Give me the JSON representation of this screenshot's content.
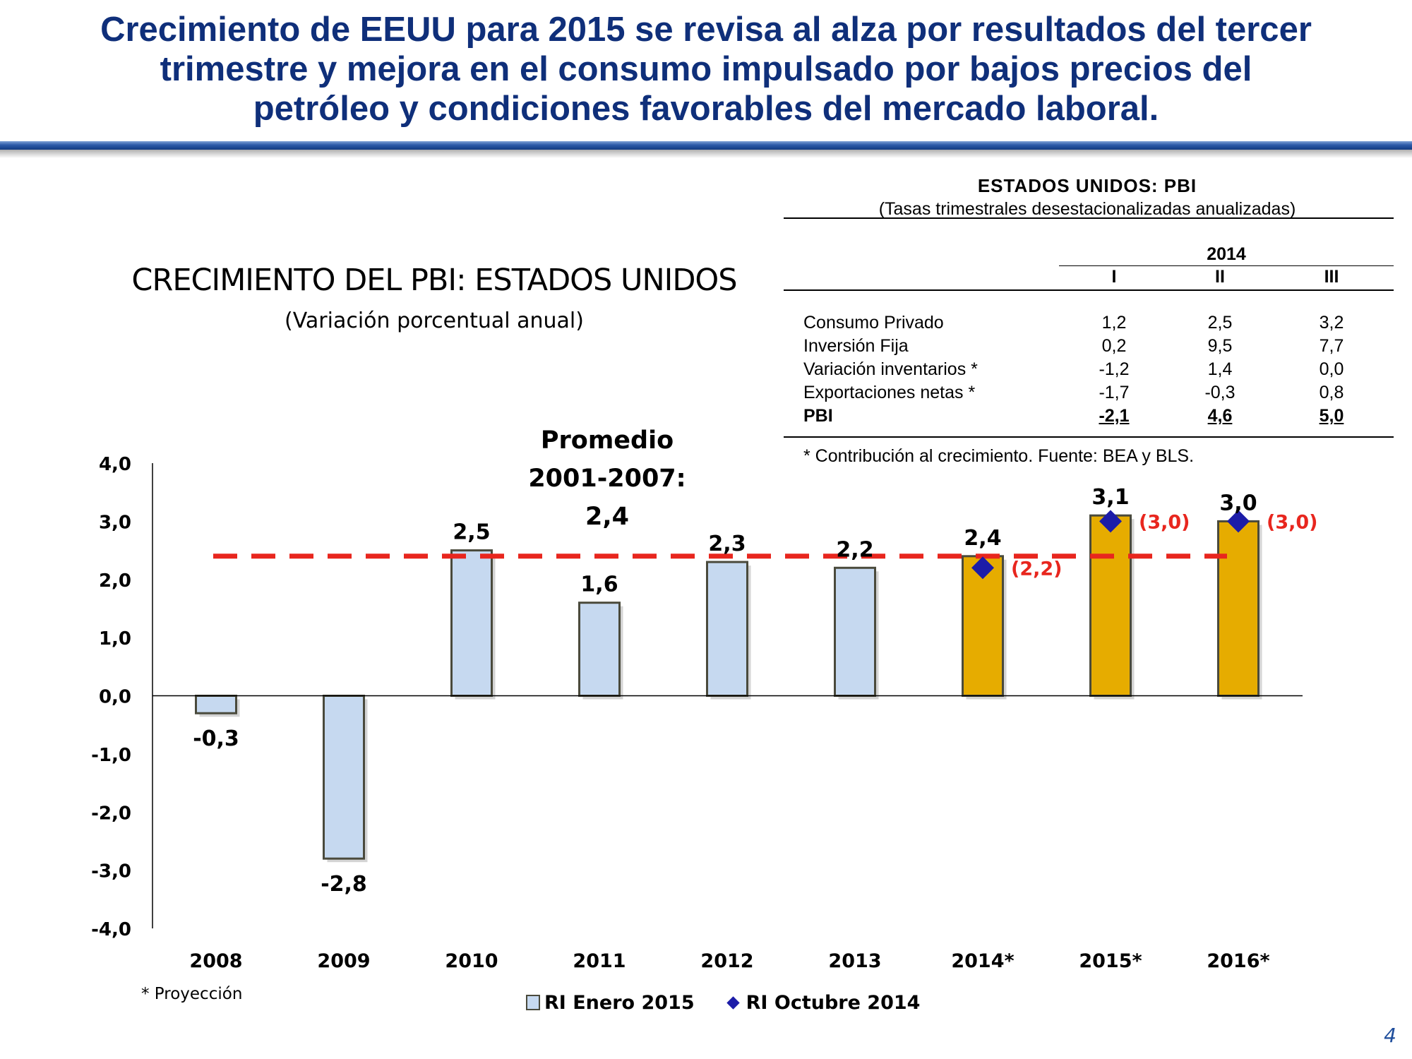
{
  "slide": {
    "title": "Crecimiento de EEUU para 2015 se revisa al alza por resultados del tercer\ntrimestre y mejora en el consumo impulsado por bajos precios del\npetróleo y condiciones favorables del mercado laboral.",
    "page_number": "4",
    "projection_note": "* Proyección"
  },
  "chart_data": {
    "type": "bar",
    "title": "CRECIMIENTO DEL PBI: ESTADOS UNIDOS",
    "subtitle": "(Variación porcentual anual)",
    "categories": [
      "2008",
      "2009",
      "2010",
      "2011",
      "2012",
      "2013",
      "2014*",
      "2015*",
      "2016*"
    ],
    "series": [
      {
        "name": "RI Enero 2015",
        "type": "bar",
        "values": [
          -0.3,
          -2.8,
          2.5,
          1.6,
          2.3,
          2.2,
          2.4,
          3.1,
          3.0
        ],
        "labels": [
          "-0,3",
          "-2,8",
          "2,5",
          "1,6",
          "2,3",
          "2,2",
          "2,4",
          "3,1",
          "3,0"
        ],
        "colors": [
          "#c6d9f0",
          "#c6d9f0",
          "#c6d9f0",
          "#c6d9f0",
          "#c6d9f0",
          "#c6d9f0",
          "#e6ac00",
          "#e6ac00",
          "#e6ac00"
        ]
      },
      {
        "name": "RI Octubre 2014",
        "type": "scatter",
        "marker": "diamond",
        "color": "#1c1ca8",
        "points": [
          {
            "category": "2014*",
            "value": 2.2,
            "label": "(2,2)"
          },
          {
            "category": "2015*",
            "value": 3.0,
            "label": "(3,0)"
          },
          {
            "category": "2016*",
            "value": 3.0,
            "label": "(3,0)"
          }
        ]
      }
    ],
    "reference_line": {
      "value": 2.4,
      "color": "#e8261e",
      "style": "dashed",
      "label_lines": [
        "Promedio",
        "2001-2007:",
        "2,4"
      ]
    },
    "ylim": [
      -4.0,
      4.0
    ],
    "yticks": [
      4.0,
      3.0,
      2.0,
      1.0,
      0.0,
      -1.0,
      -2.0,
      -3.0,
      -4.0
    ],
    "ytick_labels": [
      "4,0",
      "3,0",
      "2,0",
      "1,0",
      "0,0",
      "-1,0",
      "-2,0",
      "-3,0",
      "-4,0"
    ],
    "xlabel": "",
    "ylabel": "",
    "grid": false,
    "legend": {
      "position": "bottom",
      "items": [
        "RI Enero 2015",
        "RI Octubre 2014"
      ]
    }
  },
  "gdp_table": {
    "title": "ESTADOS UNIDOS: PBI",
    "subtitle": "(Tasas trimestrales desestacionalizadas anualizadas)",
    "year_header": "2014",
    "quarters": [
      "I",
      "II",
      "III"
    ],
    "rows": [
      {
        "label": "Consumo Privado",
        "values": [
          "1,2",
          "2,5",
          "3,2"
        ],
        "bold": false
      },
      {
        "label": "Inversión Fija",
        "values": [
          "0,2",
          "9,5",
          "7,7"
        ],
        "bold": false
      },
      {
        "label": "Variación inventarios *",
        "values": [
          "-1,2",
          "1,4",
          "0,0"
        ],
        "bold": false
      },
      {
        "label": "Exportaciones netas *",
        "values": [
          "-1,7",
          "-0,3",
          "0,8"
        ],
        "bold": false
      },
      {
        "label": "PBI",
        "values": [
          "-2,1",
          "4,6",
          "5,0"
        ],
        "bold": true
      }
    ],
    "footnote": "* Contribución al crecimiento. Fuente: BEA y BLS."
  }
}
